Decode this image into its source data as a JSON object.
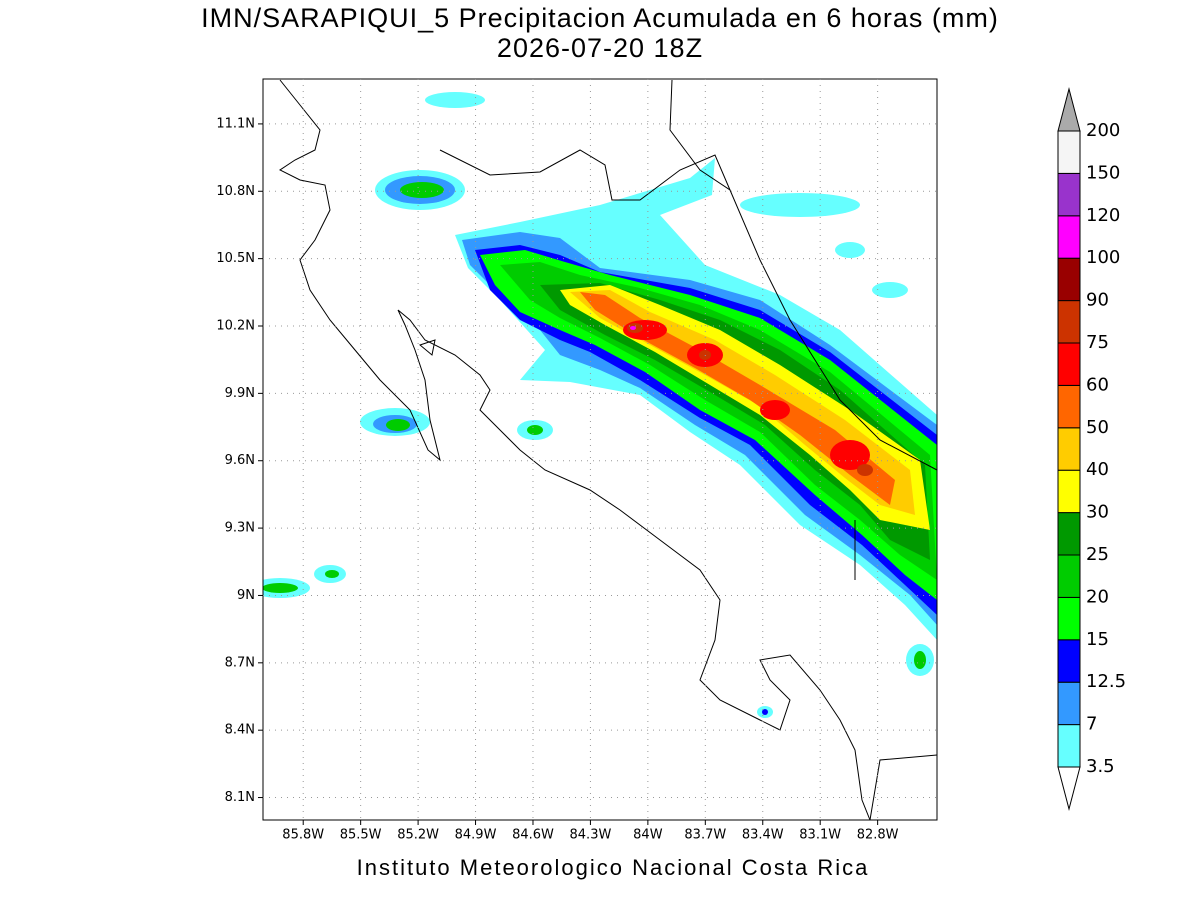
{
  "title": "IMN/SARAPIQUI_5 Precipitacion Acumulada en 6 horas (mm)",
  "subtitle": "2026-07-20 18Z",
  "footer": "Instituto Meteorologico Nacional Costa Rica",
  "map": {
    "lonlim": [
      -86.01,
      -82.49
    ],
    "latlim": [
      8.0,
      11.3
    ],
    "lon_ticks": [
      {
        "value": -85.8,
        "label": "85.8W"
      },
      {
        "value": -85.5,
        "label": "85.5W"
      },
      {
        "value": -85.2,
        "label": "85.2W"
      },
      {
        "value": -84.9,
        "label": "84.9W"
      },
      {
        "value": -84.6,
        "label": "84.6W"
      },
      {
        "value": -84.3,
        "label": "84.3W"
      },
      {
        "value": -84,
        "label": "84W"
      },
      {
        "value": -83.7,
        "label": "83.7W"
      },
      {
        "value": -83.4,
        "label": "83.4W"
      },
      {
        "value": -83.1,
        "label": "83.1W"
      },
      {
        "value": -82.8,
        "label": "82.8W"
      }
    ],
    "lat_ticks": [
      {
        "value": 11.1,
        "label": "11.1N"
      },
      {
        "value": 10.8,
        "label": "10.8N"
      },
      {
        "value": 10.5,
        "label": "10.5N"
      },
      {
        "value": 10.2,
        "label": "10.2N"
      },
      {
        "value": 9.9,
        "label": "9.9N"
      },
      {
        "value": 9.6,
        "label": "9.6N"
      },
      {
        "value": 9.3,
        "label": "9.3N"
      },
      {
        "value": 9,
        "label": "9N"
      },
      {
        "value": 8.7,
        "label": "8.7N"
      },
      {
        "value": 8.4,
        "label": "8.4N"
      },
      {
        "value": 8.1,
        "label": "8.1N"
      }
    ],
    "grid": true
  },
  "colorbar": {
    "levels": [
      3.5,
      7,
      12.5,
      15,
      20,
      25,
      30,
      40,
      50,
      60,
      75,
      90,
      100,
      120,
      150,
      200
    ],
    "colors": [
      "#ffffff",
      "#66ffff",
      "#3399ff",
      "#0000ff",
      "#00ff00",
      "#00cc00",
      "#009900",
      "#ffff00",
      "#ffcc00",
      "#ff6600",
      "#ff0000",
      "#cc3300",
      "#990000",
      "#ff00ff",
      "#9933cc",
      "#f5f5f5",
      "#aaaaaa"
    ]
  }
}
